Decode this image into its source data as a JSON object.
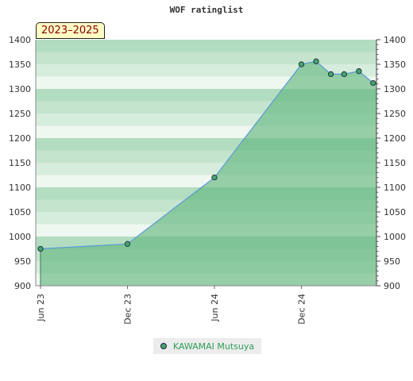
{
  "title": "WOF ratinglist",
  "period_label": "2023–2025",
  "legend": {
    "label": "KAWAMAI Mutsuya"
  },
  "colors": {
    "area_fill": "#7fc597",
    "line": "#5b9bd5",
    "marker": "#43a56a",
    "band_dark": "#b3ddc0",
    "band_light": "#eef7f0"
  },
  "chart_data": {
    "type": "area",
    "title": "WOF ratinglist",
    "xlabel": "",
    "ylabel": "",
    "ylim": [
      900,
      1400
    ],
    "yticks": [
      900,
      950,
      1000,
      1050,
      1100,
      1150,
      1200,
      1250,
      1300,
      1350,
      1400
    ],
    "xticks": [
      "Jun 23",
      "Dec 23",
      "Jun 24",
      "Dec 24"
    ],
    "grid": true,
    "legend_position": "bottom",
    "series": [
      {
        "name": "KAWAMAI Mutsuya",
        "points": [
          [
            "2023-06-01",
            975
          ],
          [
            "2023-12-01",
            985
          ],
          [
            "2024-06-01",
            1120
          ],
          [
            "2024-12-01",
            1350
          ],
          [
            "2025-01-01",
            1356
          ],
          [
            "2025-02-01",
            1330
          ],
          [
            "2025-03-01",
            1330
          ],
          [
            "2025-04-01",
            1336
          ],
          [
            "2025-05-01",
            1312
          ]
        ]
      }
    ]
  }
}
